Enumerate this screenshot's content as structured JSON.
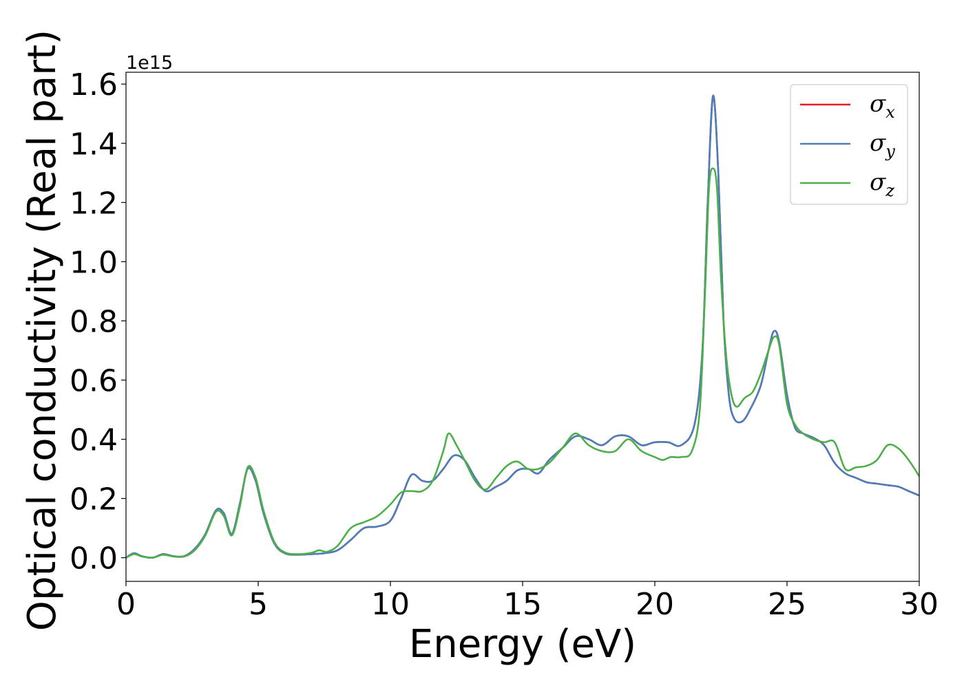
{
  "chart_data": {
    "type": "line",
    "xlabel": "Energy (eV)",
    "ylabel": "Optical conductivity (Real part)",
    "y_offset_label": "1e15",
    "xlim": [
      0,
      30
    ],
    "ylim": [
      -0.08,
      1.64
    ],
    "x_ticks": [
      "0",
      "5",
      "10",
      "15",
      "20",
      "25",
      "30"
    ],
    "y_ticks": [
      "0.0",
      "0.2",
      "0.4",
      "0.6",
      "0.8",
      "1.0",
      "1.2",
      "1.4",
      "1.6"
    ],
    "legend_position": "top-right",
    "series": [
      {
        "name": "σx",
        "symbol": "σ",
        "sub": "x",
        "color": "#e41a1c",
        "x": [
          0,
          0.3,
          0.6,
          1.0,
          1.4,
          1.8,
          2.2,
          2.6,
          3.0,
          3.4,
          3.7,
          4.0,
          4.3,
          4.6,
          4.9,
          5.2,
          5.6,
          6.0,
          6.5,
          7.0,
          7.5,
          8.0,
          8.5,
          9.0,
          9.5,
          10.0,
          10.4,
          10.8,
          11.2,
          11.6,
          12.0,
          12.4,
          12.8,
          13.2,
          13.6,
          14.0,
          14.4,
          14.8,
          15.2,
          15.6,
          16.0,
          16.5,
          17.0,
          17.5,
          18.0,
          18.5,
          19.0,
          19.5,
          20.0,
          20.5,
          21.0,
          21.5,
          21.8,
          22.0,
          22.2,
          22.4,
          22.6,
          22.8,
          23.0,
          23.3,
          23.6,
          24.0,
          24.3,
          24.5,
          24.7,
          25.0,
          25.3,
          25.6,
          26.0,
          26.4,
          26.8,
          27.2,
          27.6,
          28.0,
          28.4,
          28.8,
          29.2,
          29.6,
          30.0
        ],
        "y": [
          0.0,
          0.015,
          0.005,
          0.0,
          0.012,
          0.005,
          0.005,
          0.03,
          0.08,
          0.16,
          0.15,
          0.08,
          0.18,
          0.3,
          0.26,
          0.15,
          0.05,
          0.015,
          0.01,
          0.012,
          0.015,
          0.025,
          0.06,
          0.1,
          0.105,
          0.125,
          0.2,
          0.28,
          0.26,
          0.26,
          0.3,
          0.345,
          0.33,
          0.27,
          0.225,
          0.24,
          0.26,
          0.295,
          0.3,
          0.285,
          0.33,
          0.37,
          0.41,
          0.4,
          0.38,
          0.41,
          0.41,
          0.38,
          0.39,
          0.39,
          0.38,
          0.45,
          0.7,
          1.2,
          1.56,
          1.3,
          0.8,
          0.55,
          0.47,
          0.46,
          0.5,
          0.58,
          0.7,
          0.765,
          0.73,
          0.55,
          0.44,
          0.42,
          0.405,
          0.38,
          0.32,
          0.285,
          0.27,
          0.255,
          0.25,
          0.245,
          0.24,
          0.225,
          0.21
        ]
      },
      {
        "name": "σy",
        "symbol": "σ",
        "sub": "y",
        "color": "#4a7fbb",
        "x": [
          0,
          0.3,
          0.6,
          1.0,
          1.4,
          1.8,
          2.2,
          2.6,
          3.0,
          3.4,
          3.7,
          4.0,
          4.3,
          4.6,
          4.9,
          5.2,
          5.6,
          6.0,
          6.5,
          7.0,
          7.5,
          8.0,
          8.5,
          9.0,
          9.5,
          10.0,
          10.4,
          10.8,
          11.2,
          11.6,
          12.0,
          12.4,
          12.8,
          13.2,
          13.6,
          14.0,
          14.4,
          14.8,
          15.2,
          15.6,
          16.0,
          16.5,
          17.0,
          17.5,
          18.0,
          18.5,
          19.0,
          19.5,
          20.0,
          20.5,
          21.0,
          21.5,
          21.8,
          22.0,
          22.2,
          22.4,
          22.6,
          22.8,
          23.0,
          23.3,
          23.6,
          24.0,
          24.3,
          24.5,
          24.7,
          25.0,
          25.3,
          25.6,
          26.0,
          26.4,
          26.8,
          27.2,
          27.6,
          28.0,
          28.4,
          28.8,
          29.2,
          29.6,
          30.0
        ],
        "y": [
          0.0,
          0.015,
          0.005,
          0.0,
          0.012,
          0.005,
          0.005,
          0.03,
          0.08,
          0.16,
          0.15,
          0.08,
          0.18,
          0.3,
          0.26,
          0.15,
          0.05,
          0.015,
          0.01,
          0.012,
          0.015,
          0.025,
          0.06,
          0.1,
          0.105,
          0.125,
          0.2,
          0.28,
          0.26,
          0.26,
          0.3,
          0.345,
          0.33,
          0.27,
          0.225,
          0.24,
          0.26,
          0.295,
          0.3,
          0.285,
          0.33,
          0.37,
          0.41,
          0.4,
          0.38,
          0.41,
          0.41,
          0.38,
          0.39,
          0.39,
          0.38,
          0.45,
          0.7,
          1.2,
          1.56,
          1.3,
          0.8,
          0.55,
          0.47,
          0.46,
          0.5,
          0.58,
          0.7,
          0.765,
          0.73,
          0.55,
          0.44,
          0.42,
          0.405,
          0.38,
          0.32,
          0.285,
          0.27,
          0.255,
          0.25,
          0.245,
          0.24,
          0.225,
          0.21
        ]
      },
      {
        "name": "σz",
        "symbol": "σ",
        "sub": "z",
        "color": "#4daf4a",
        "x": [
          0,
          0.3,
          0.6,
          1.0,
          1.4,
          1.8,
          2.2,
          2.6,
          3.0,
          3.4,
          3.7,
          4.0,
          4.3,
          4.6,
          4.9,
          5.2,
          5.6,
          6.0,
          6.5,
          7.0,
          7.3,
          7.6,
          8.0,
          8.5,
          9.0,
          9.5,
          10.0,
          10.4,
          10.8,
          11.2,
          11.6,
          12.0,
          12.2,
          12.5,
          12.8,
          13.2,
          13.6,
          14.0,
          14.4,
          14.8,
          15.2,
          15.6,
          16.0,
          16.5,
          17.0,
          17.5,
          18.0,
          18.5,
          19.0,
          19.5,
          20.0,
          20.3,
          20.6,
          21.0,
          21.4,
          21.7,
          21.9,
          22.05,
          22.2,
          22.35,
          22.5,
          22.7,
          22.9,
          23.1,
          23.4,
          23.7,
          24.0,
          24.3,
          24.5,
          24.7,
          25.0,
          25.3,
          25.6,
          26.0,
          26.4,
          26.8,
          27.2,
          27.6,
          28.0,
          28.4,
          28.8,
          29.2,
          29.6,
          30.0
        ],
        "y": [
          0.0,
          0.012,
          0.004,
          0.0,
          0.01,
          0.004,
          0.004,
          0.025,
          0.075,
          0.155,
          0.14,
          0.075,
          0.17,
          0.305,
          0.27,
          0.16,
          0.055,
          0.018,
          0.012,
          0.016,
          0.025,
          0.02,
          0.04,
          0.1,
          0.12,
          0.14,
          0.18,
          0.22,
          0.225,
          0.225,
          0.26,
          0.36,
          0.42,
          0.38,
          0.33,
          0.26,
          0.23,
          0.27,
          0.31,
          0.325,
          0.3,
          0.3,
          0.32,
          0.37,
          0.42,
          0.38,
          0.36,
          0.36,
          0.4,
          0.36,
          0.34,
          0.33,
          0.34,
          0.34,
          0.36,
          0.5,
          0.9,
          1.25,
          1.315,
          1.25,
          0.95,
          0.68,
          0.55,
          0.51,
          0.54,
          0.56,
          0.62,
          0.7,
          0.745,
          0.72,
          0.52,
          0.45,
          0.42,
          0.4,
          0.39,
          0.39,
          0.3,
          0.305,
          0.31,
          0.33,
          0.38,
          0.37,
          0.33,
          0.275
        ]
      }
    ]
  }
}
